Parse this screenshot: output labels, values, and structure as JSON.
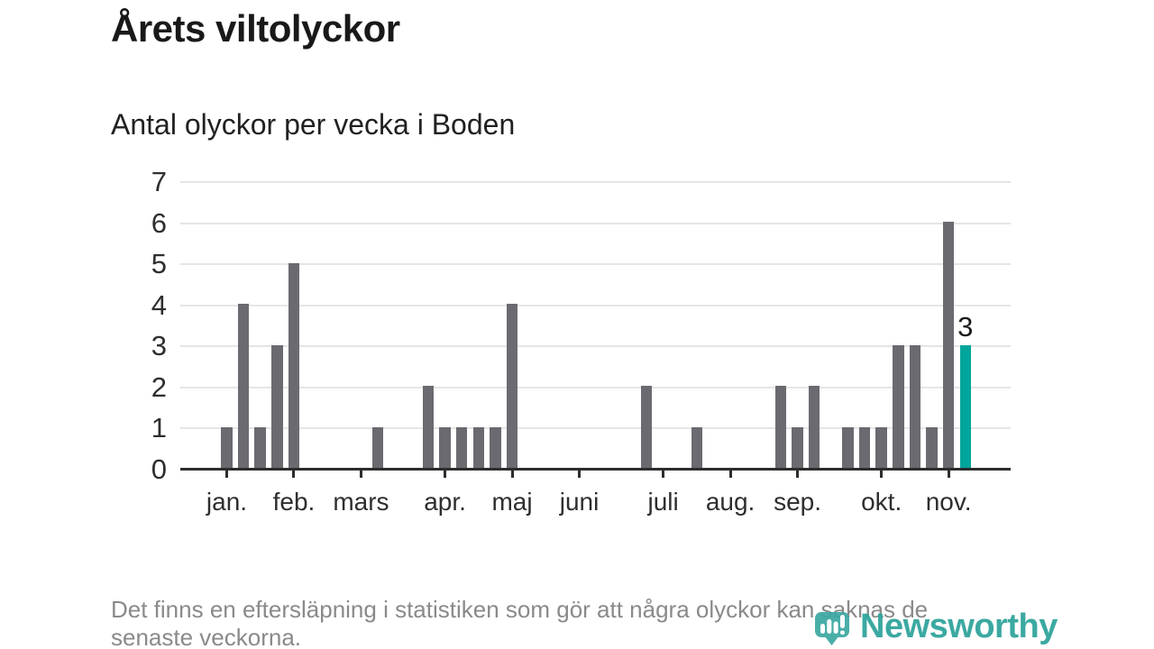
{
  "header": {
    "title": "Årets viltolyckor",
    "subtitle": "Antal olyckor per vecka i Boden"
  },
  "chart_data": {
    "type": "bar",
    "title": "Antal olyckor per vecka i Boden",
    "x_unit": "vecka",
    "values": [
      1,
      4,
      1,
      3,
      5,
      0,
      0,
      0,
      0,
      1,
      0,
      0,
      2,
      1,
      1,
      1,
      1,
      4,
      0,
      0,
      0,
      0,
      0,
      0,
      0,
      2,
      0,
      0,
      1,
      0,
      0,
      0,
      0,
      2,
      1,
      2,
      0,
      1,
      1,
      1,
      3,
      3,
      1,
      6,
      3
    ],
    "month_ticks": [
      {
        "label": "jan.",
        "slot": 0
      },
      {
        "label": "feb.",
        "slot": 4
      },
      {
        "label": "mars",
        "slot": 8
      },
      {
        "label": "apr.",
        "slot": 13
      },
      {
        "label": "maj",
        "slot": 17
      },
      {
        "label": "juni",
        "slot": 21
      },
      {
        "label": "juli",
        "slot": 26
      },
      {
        "label": "aug.",
        "slot": 30
      },
      {
        "label": "sep.",
        "slot": 34
      },
      {
        "label": "okt.",
        "slot": 39
      },
      {
        "label": "nov.",
        "slot": 43
      }
    ],
    "ylim": [
      0,
      7
    ],
    "yticks": [
      0,
      1,
      2,
      3,
      4,
      5,
      6,
      7
    ],
    "grid": true,
    "legend": false,
    "bar_color": "#6b6a70",
    "highlight": {
      "index": 44,
      "value": 3,
      "label": "3",
      "color": "#00a59b"
    }
  },
  "footer": {
    "note_line1": "Det finns en eftersläpning i statistiken som gör att några olyckor kan saknas de",
    "note_line2": "senaste veckorna.",
    "brand": "Newsworthy"
  },
  "colors": {
    "bar": "#6b6a70",
    "highlight": "#00a59b",
    "gridline": "#e5e5e6",
    "axis": "#2d2d2e",
    "brand_teal": "#31a59d"
  }
}
